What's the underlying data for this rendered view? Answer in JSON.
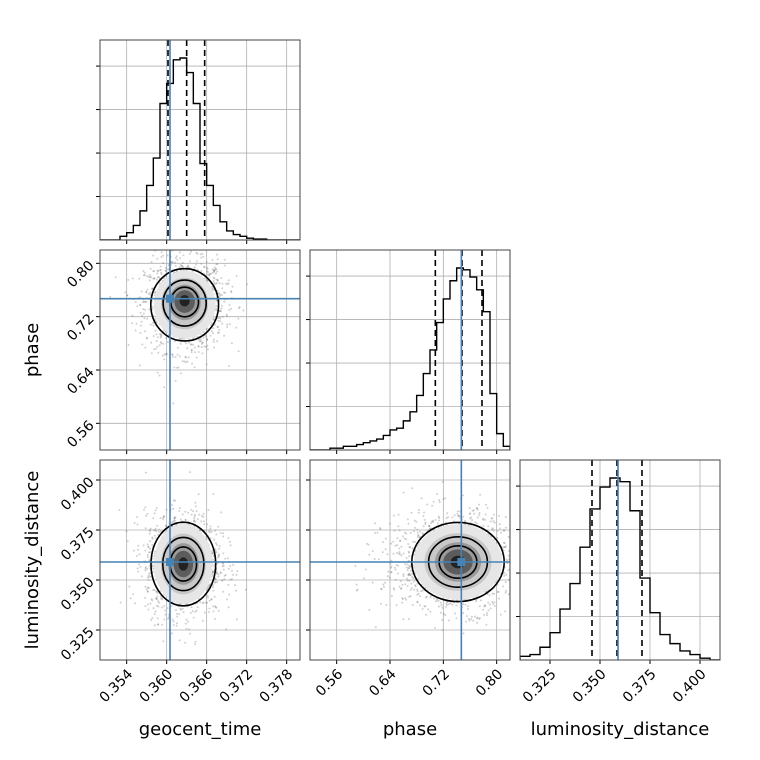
{
  "chart_data": {
    "type": "corner",
    "grid": true,
    "truth_color": "#4682b4",
    "hist_color": "#000000",
    "params": [
      {
        "name": "geocent_time",
        "range": [
          0.35,
          0.38
        ],
        "ticks": [
          0.354,
          0.36,
          0.366,
          0.372,
          0.378
        ],
        "tick_labels": [
          "0.354",
          "0.360",
          "0.366",
          "0.372",
          "0.378"
        ],
        "truth": 0.3605,
        "quantiles": [
          0.3602,
          0.363,
          0.3657
        ],
        "hist_bins": [
          0.35,
          0.351,
          0.352,
          0.353,
          0.354,
          0.355,
          0.356,
          0.357,
          0.358,
          0.359,
          0.36,
          0.361,
          0.362,
          0.363,
          0.364,
          0.365,
          0.366,
          0.367,
          0.368,
          0.369,
          0.37,
          0.371,
          0.372,
          0.373,
          0.374,
          0.375,
          0.376,
          0.377,
          0.378,
          0.379,
          0.38
        ],
        "hist_values": [
          0,
          0,
          0,
          0.02,
          0.04,
          0.08,
          0.16,
          0.3,
          0.45,
          0.75,
          0.86,
          0.99,
          1.0,
          0.92,
          0.75,
          0.42,
          0.3,
          0.19,
          0.1,
          0.05,
          0.03,
          0.02,
          0.01,
          0.005,
          0.005,
          0,
          0,
          0,
          0,
          0
        ]
      },
      {
        "name": "phase",
        "range": [
          0.52,
          0.82
        ],
        "ticks": [
          0.56,
          0.64,
          0.72,
          0.8
        ],
        "tick_labels": [
          "0.56",
          "0.64",
          "0.72",
          "0.80"
        ],
        "truth": 0.747,
        "quantiles": [
          0.708,
          0.748,
          0.778
        ],
        "hist_bins": [
          0.52,
          0.53,
          0.54,
          0.55,
          0.56,
          0.57,
          0.58,
          0.59,
          0.6,
          0.61,
          0.62,
          0.63,
          0.64,
          0.65,
          0.66,
          0.67,
          0.68,
          0.69,
          0.7,
          0.71,
          0.72,
          0.73,
          0.74,
          0.75,
          0.76,
          0.77,
          0.78,
          0.79,
          0.8,
          0.81,
          0.82
        ],
        "hist_values": [
          0,
          0,
          0,
          0.01,
          0.01,
          0.02,
          0.02,
          0.03,
          0.04,
          0.05,
          0.06,
          0.08,
          0.11,
          0.12,
          0.16,
          0.21,
          0.3,
          0.42,
          0.55,
          0.7,
          0.83,
          0.93,
          1.0,
          0.99,
          0.95,
          0.88,
          0.76,
          0.31,
          0.09,
          0.02
        ]
      },
      {
        "name": "luminosity_distance",
        "range": [
          0.31,
          0.41
        ],
        "ticks": [
          0.325,
          0.35,
          0.375,
          0.4
        ],
        "tick_labels": [
          "0.325",
          "0.350",
          "0.375",
          "0.400"
        ],
        "truth": 0.359,
        "quantiles": [
          0.346,
          0.3585,
          0.371
        ],
        "hist_bins": [
          0.31,
          0.315,
          0.32,
          0.325,
          0.33,
          0.335,
          0.34,
          0.345,
          0.35,
          0.355,
          0.36,
          0.365,
          0.37,
          0.375,
          0.38,
          0.385,
          0.39,
          0.395,
          0.4,
          0.405,
          0.41
        ],
        "hist_values": [
          0.02,
          0.03,
          0.07,
          0.15,
          0.28,
          0.42,
          0.62,
          0.83,
          0.95,
          1.0,
          0.98,
          0.82,
          0.45,
          0.26,
          0.14,
          0.09,
          0.05,
          0.03,
          0.01,
          0.0
        ]
      }
    ],
    "pairs": [
      {
        "x": "geocent_time",
        "y": "phase",
        "center": [
          0.3627,
          0.745
        ],
        "sigma": [
          0.0022,
          0.022
        ],
        "skew_y": -0.5,
        "truth": [
          0.3605,
          0.747
        ]
      },
      {
        "x": "geocent_time",
        "y": "luminosity_distance",
        "center": [
          0.3625,
          0.358
        ],
        "sigma": [
          0.0021,
          0.0095
        ],
        "skew_y": 0,
        "truth": [
          0.3605,
          0.359
        ]
      },
      {
        "x": "phase",
        "y": "luminosity_distance",
        "center": [
          0.742,
          0.359
        ],
        "sigma": [
          0.03,
          0.009
        ],
        "skew_x": -0.6,
        "truth": [
          0.747,
          0.359
        ]
      }
    ]
  }
}
